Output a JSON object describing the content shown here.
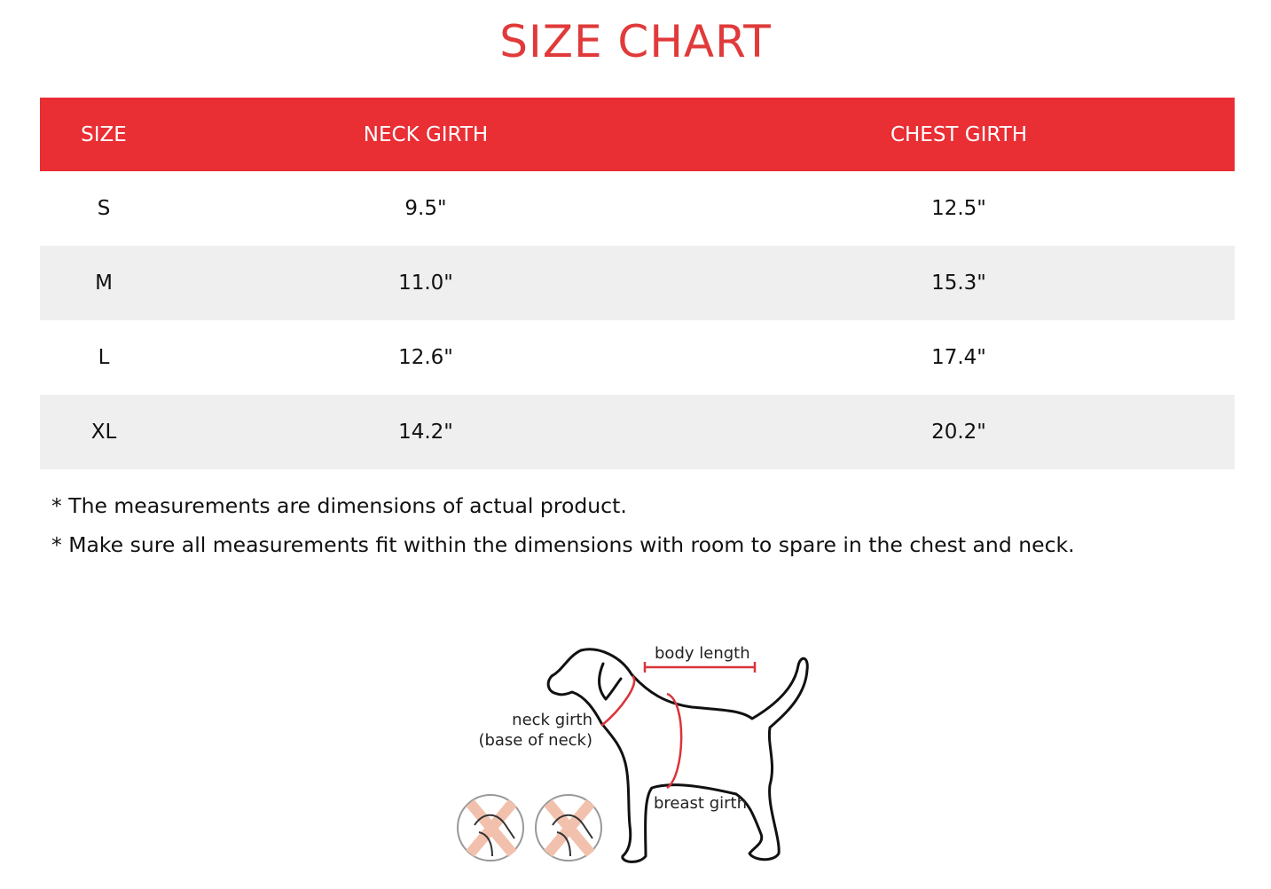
{
  "title": "SIZE CHART",
  "colors": {
    "accent": "#e92e34",
    "title": "#e03a3a",
    "alt_row": "#efefef"
  },
  "table": {
    "headers": [
      "SIZE",
      "NECK GIRTH",
      "CHEST GIRTH"
    ],
    "rows": [
      [
        "S",
        "9.5\"",
        "12.5\""
      ],
      [
        "M",
        "11.0\"",
        "15.3\""
      ],
      [
        "L",
        "12.6\"",
        "17.4\""
      ],
      [
        "XL",
        "14.2\"",
        "20.2\""
      ]
    ]
  },
  "notes": [
    "* The measurements are dimensions of actual product.",
    "* Make sure all measurements fit within the dimensions with room to spare in the chest and neck."
  ],
  "diagram": {
    "body_length": "body length",
    "neck_girth": "neck girth",
    "neck_girth_sub": "(base of neck)",
    "breast_girth": "breast girth"
  }
}
